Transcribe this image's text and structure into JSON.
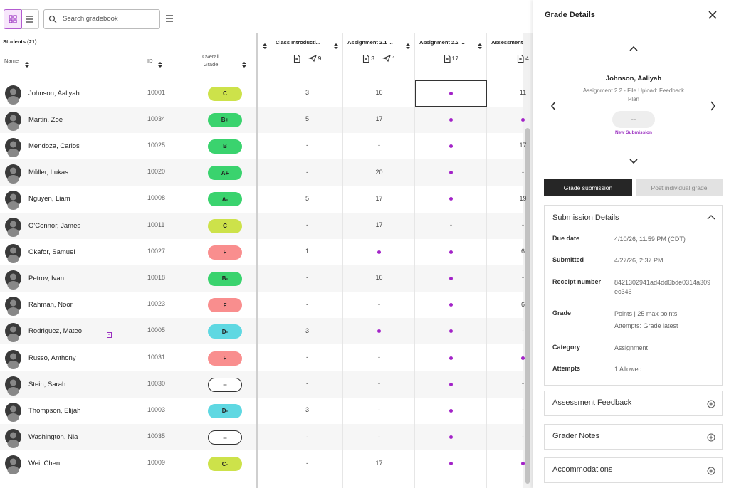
{
  "toolbar": {
    "search_placeholder": "Search gradebook"
  },
  "table": {
    "students_label": "Students (21)",
    "headers": {
      "name": "Name",
      "id": "ID",
      "overall_grade": "Overall Grade"
    },
    "columns": [
      {
        "title": "Class Introducti...",
        "sent_count": 9
      },
      {
        "title": "Assignment 2.1 ...",
        "file_count": 3,
        "sent_count": 1
      },
      {
        "title": "Assignment 2.2 ...",
        "file_count": 17
      },
      {
        "title": "Assessment",
        "file_count": 4
      }
    ],
    "rows": [
      {
        "name": "Johnson, Aaliyah",
        "id": 10001,
        "grade": "C",
        "grade_color": "#cde24a",
        "cells": [
          3,
          16,
          null,
          11
        ]
      },
      {
        "name": "Martin, Zoe",
        "id": 10034,
        "grade": "B+",
        "grade_color": "#3ad36e",
        "cells": [
          5,
          17,
          null,
          null
        ]
      },
      {
        "name": "Mendoza, Carlos",
        "id": 10025,
        "grade": "B",
        "grade_color": "#3ad36e",
        "cells": [
          "-",
          "-",
          null,
          17
        ]
      },
      {
        "name": "Müller, Lukas",
        "id": 10020,
        "grade": "A+",
        "grade_color": "#3ad36e",
        "cells": [
          "-",
          20,
          null,
          "-"
        ]
      },
      {
        "name": "Nguyen, Liam",
        "id": 10008,
        "grade": "A-",
        "grade_color": "#3ad36e",
        "cells": [
          5,
          17,
          null,
          19
        ]
      },
      {
        "name": "O'Connor, James",
        "id": 10011,
        "grade": "C",
        "grade_color": "#cde24a",
        "cells": [
          "-",
          17,
          "-",
          "-"
        ]
      },
      {
        "name": "Okafor, Samuel",
        "id": 10027,
        "grade": "F",
        "grade_color": "#f98e8e",
        "cells": [
          1,
          null,
          null,
          6
        ]
      },
      {
        "name": "Petrov, Ivan",
        "id": 10018,
        "grade": "B-",
        "grade_color": "#3ad36e",
        "cells": [
          "-",
          16,
          null,
          "-"
        ]
      },
      {
        "name": "Rahman, Noor",
        "id": 10023,
        "grade": "F",
        "grade_color": "#f98e8e",
        "cells": [
          "-",
          "-",
          null,
          6
        ]
      },
      {
        "name": "Rodriguez, Mateo",
        "id": 10005,
        "grade": "D-",
        "grade_color": "#5fd8e2",
        "flagged": true,
        "cells": [
          3,
          null,
          null,
          "-"
        ]
      },
      {
        "name": "Russo, Anthony",
        "id": 10031,
        "grade": "F",
        "grade_color": "#f98e8e",
        "cells": [
          "-",
          "-",
          null,
          null
        ]
      },
      {
        "name": "Stein, Sarah",
        "id": 10030,
        "grade": "--",
        "grade_color": "#ffffff",
        "cells": [
          "-",
          "-",
          null,
          "-"
        ]
      },
      {
        "name": "Thompson, Elijah",
        "id": 10003,
        "grade": "D-",
        "grade_color": "#5fd8e2",
        "cells": [
          3,
          "-",
          null,
          "-"
        ]
      },
      {
        "name": "Washington, Nia",
        "id": 10035,
        "grade": "--",
        "grade_color": "#ffffff",
        "cells": [
          "-",
          "-",
          null,
          "-"
        ]
      },
      {
        "name": "Wei, Chen",
        "id": 10009,
        "grade": "C-",
        "grade_color": "#cde24a",
        "cells": [
          "-",
          17,
          null,
          null
        ]
      }
    ]
  },
  "panel": {
    "title": "Grade Details",
    "student": "Johnson, Aaliyah",
    "assignment": "Assignment 2.2 - File Upload: Feedback Plan",
    "grade_display": "--",
    "status": "New Submission",
    "buttons": [
      "Grade submission",
      "Post individual grade"
    ],
    "details_title": "Submission Details",
    "details": [
      {
        "label": "Due date",
        "value": [
          "4/10/26, 11:59 PM (CDT)"
        ]
      },
      {
        "label": "Submitted",
        "value": [
          "4/27/26, 2:37 PM"
        ]
      },
      {
        "label": "Receipt number",
        "value": [
          "8421302941ad4dd6bde0314a309ec346"
        ]
      },
      {
        "label": "Grade",
        "value": [
          "Points | 25 max points",
          "Attempts: Grade latest"
        ]
      },
      {
        "label": "Category",
        "value": [
          "Assignment"
        ]
      },
      {
        "label": "Attempts",
        "value": [
          "1 Allowed"
        ]
      }
    ],
    "sections": [
      "Assessment Feedback",
      "Grader Notes",
      "Accommodations"
    ]
  }
}
